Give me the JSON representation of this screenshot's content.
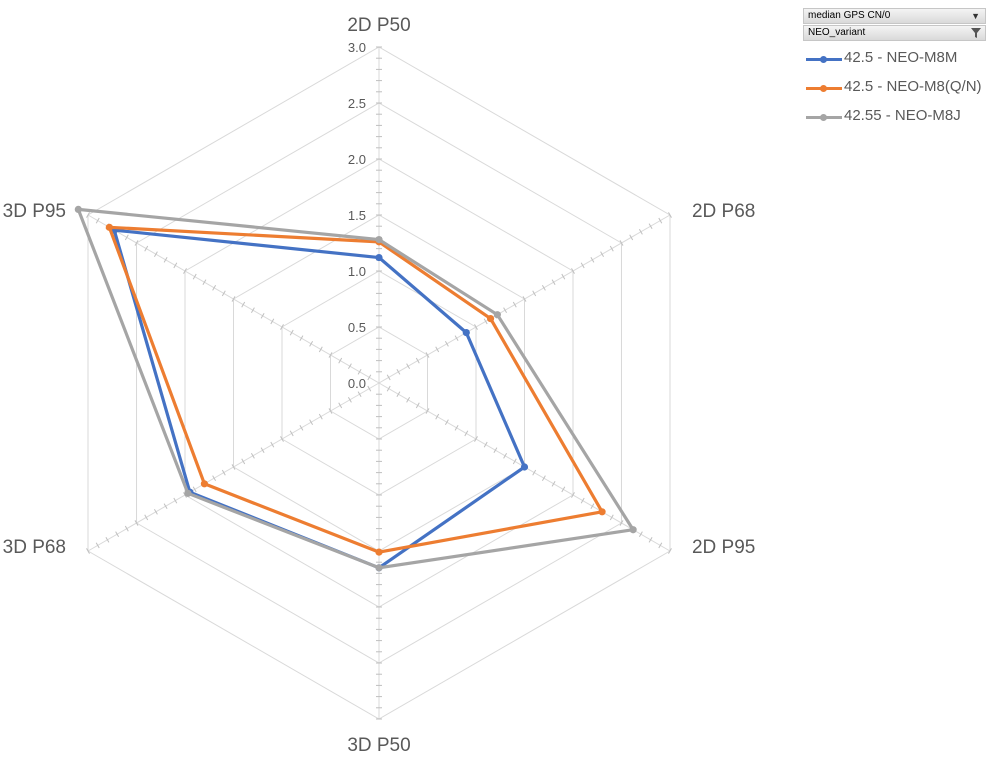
{
  "filters": [
    {
      "label": "median GPS CN/0",
      "icon": "dropdown-arrow-icon"
    },
    {
      "label": "NEO_variant",
      "icon": "filter-funnel-icon"
    }
  ],
  "chart_data": {
    "type": "radar",
    "title": "",
    "axes": [
      "2D P50",
      "2D P68",
      "2D P95",
      "3D P50",
      "3D P68",
      "3D P95"
    ],
    "range": [
      0,
      3.0
    ],
    "ticks": [
      "0.0",
      "0.5",
      "1.0",
      "1.5",
      "2.0",
      "2.5",
      "3.0"
    ],
    "tick_values": [
      0,
      0.5,
      1.0,
      1.5,
      2.0,
      2.5,
      3.0
    ],
    "grid": true,
    "legend_position": "top-right",
    "series": [
      {
        "name": "42.5 - NEO-M8M",
        "color": "#4472C4",
        "values": [
          1.12,
          0.9,
          1.5,
          1.65,
          1.95,
          2.73
        ]
      },
      {
        "name": "42.5 - NEO-M8(Q/N)",
        "color": "#ED7D31",
        "values": [
          1.26,
          1.15,
          2.3,
          1.51,
          1.8,
          2.78
        ]
      },
      {
        "name": "42.55 - NEO-M8J",
        "color": "#A5A5A5",
        "values": [
          1.28,
          1.22,
          2.62,
          1.65,
          1.97,
          3.1
        ]
      }
    ]
  }
}
